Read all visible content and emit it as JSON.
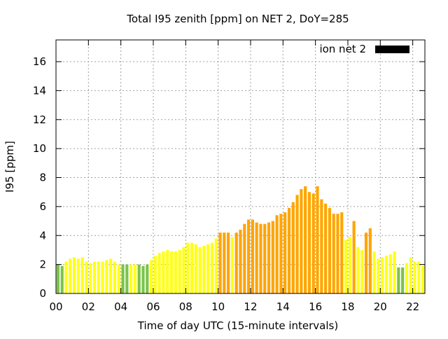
{
  "chart_data": {
    "type": "bar",
    "title": "Total I95 zenith [ppm] on NET 2, DoY=285",
    "xlabel": "Time of day UTC (15-minute intervals)",
    "ylabel": "I95 [ppm]",
    "xlim": [
      0,
      22.75
    ],
    "ylim": [
      0,
      17.5
    ],
    "x_ticks": [
      0,
      2,
      4,
      6,
      8,
      10,
      12,
      14,
      16,
      18,
      20,
      22
    ],
    "x_tick_labels": [
      "00",
      "02",
      "04",
      "06",
      "08",
      "10",
      "12",
      "14",
      "16",
      "18",
      "20",
      "22"
    ],
    "y_ticks": [
      0,
      2,
      4,
      6,
      8,
      10,
      12,
      14,
      16
    ],
    "y_tick_labels": [
      "0",
      "2",
      "4",
      "6",
      "8",
      "10",
      "12",
      "14",
      "16"
    ],
    "grid": true,
    "legend": {
      "label": "ion net 2",
      "position": "top-right",
      "swatch_color": "#000000"
    },
    "bar_width_hours": 0.18,
    "colors": {
      "green": "#7bc34a",
      "yellow": "#ffff1a",
      "orange": "#ffa500"
    },
    "series": [
      {
        "x": [
          0.125,
          0.375,
          0.625,
          0.875,
          1.125,
          1.375,
          1.625,
          1.875,
          2.125,
          2.375,
          2.625,
          2.875,
          3.125,
          3.375,
          3.625,
          3.875,
          4.125,
          4.375,
          4.625,
          4.875,
          5.125,
          5.375,
          5.625,
          5.875,
          6.125,
          6.375,
          6.625,
          6.875,
          7.125,
          7.375,
          7.625,
          7.875,
          8.125,
          8.375,
          8.625,
          8.875,
          9.125,
          9.375,
          9.625,
          9.875,
          10.125,
          10.375,
          10.625,
          10.875,
          11.125,
          11.375,
          11.625,
          11.875,
          12.125,
          12.375,
          12.625,
          12.875,
          13.125,
          13.375,
          13.625,
          13.875,
          14.125,
          14.375,
          14.625,
          14.875,
          15.125,
          15.375,
          15.625,
          15.875,
          16.125,
          16.375,
          16.625,
          16.875,
          17.125,
          17.375,
          17.625,
          17.875,
          18.125,
          18.375,
          18.625,
          18.875,
          19.125,
          19.375,
          19.625,
          19.875,
          20.125,
          20.375,
          20.625,
          20.875,
          21.125,
          21.375,
          21.625,
          21.875,
          22.125,
          22.375,
          22.625
        ],
        "values": [
          2.0,
          1.9,
          2.2,
          2.4,
          2.5,
          2.4,
          2.5,
          2.2,
          2.1,
          2.2,
          2.2,
          2.2,
          2.3,
          2.4,
          2.2,
          2.0,
          2.0,
          2.0,
          2.0,
          2.0,
          2.0,
          1.9,
          2.0,
          2.3,
          2.6,
          2.8,
          2.9,
          3.0,
          2.9,
          2.9,
          3.0,
          3.2,
          3.5,
          3.5,
          3.4,
          3.2,
          3.3,
          3.4,
          3.5,
          3.8,
          4.2,
          4.2,
          4.2,
          3.9,
          4.2,
          4.4,
          4.8,
          5.1,
          5.1,
          4.9,
          4.8,
          4.8,
          4.9,
          5.0,
          5.4,
          5.5,
          5.6,
          5.9,
          6.3,
          6.8,
          7.2,
          7.4,
          7.0,
          6.9,
          7.4,
          6.5,
          6.2,
          5.9,
          5.5,
          5.5,
          5.6,
          3.7,
          3.9,
          5.0,
          3.2,
          3.0,
          4.2,
          4.5,
          2.9,
          2.4,
          2.5,
          2.6,
          2.7,
          2.9,
          1.8,
          1.8,
          2.1,
          2.5,
          2.2,
          2.2,
          1.9
        ],
        "colors": [
          "green",
          "green",
          "yellow",
          "yellow",
          "yellow",
          "yellow",
          "yellow",
          "yellow",
          "yellow",
          "yellow",
          "yellow",
          "yellow",
          "yellow",
          "yellow",
          "yellow",
          "yellow",
          "green",
          "green",
          "yellow",
          "yellow",
          "green",
          "green",
          "green",
          "yellow",
          "yellow",
          "yellow",
          "yellow",
          "yellow",
          "yellow",
          "yellow",
          "yellow",
          "yellow",
          "yellow",
          "yellow",
          "yellow",
          "yellow",
          "yellow",
          "yellow",
          "yellow",
          "yellow",
          "orange",
          "orange",
          "orange",
          "yellow",
          "orange",
          "orange",
          "orange",
          "orange",
          "orange",
          "orange",
          "orange",
          "orange",
          "orange",
          "orange",
          "orange",
          "orange",
          "orange",
          "orange",
          "orange",
          "orange",
          "orange",
          "orange",
          "orange",
          "orange",
          "orange",
          "orange",
          "orange",
          "orange",
          "orange",
          "orange",
          "orange",
          "yellow",
          "yellow",
          "orange",
          "yellow",
          "yellow",
          "orange",
          "orange",
          "yellow",
          "yellow",
          "yellow",
          "yellow",
          "yellow",
          "yellow",
          "green",
          "green",
          "yellow",
          "yellow",
          "yellow",
          "yellow",
          "yellow"
        ]
      }
    ]
  }
}
